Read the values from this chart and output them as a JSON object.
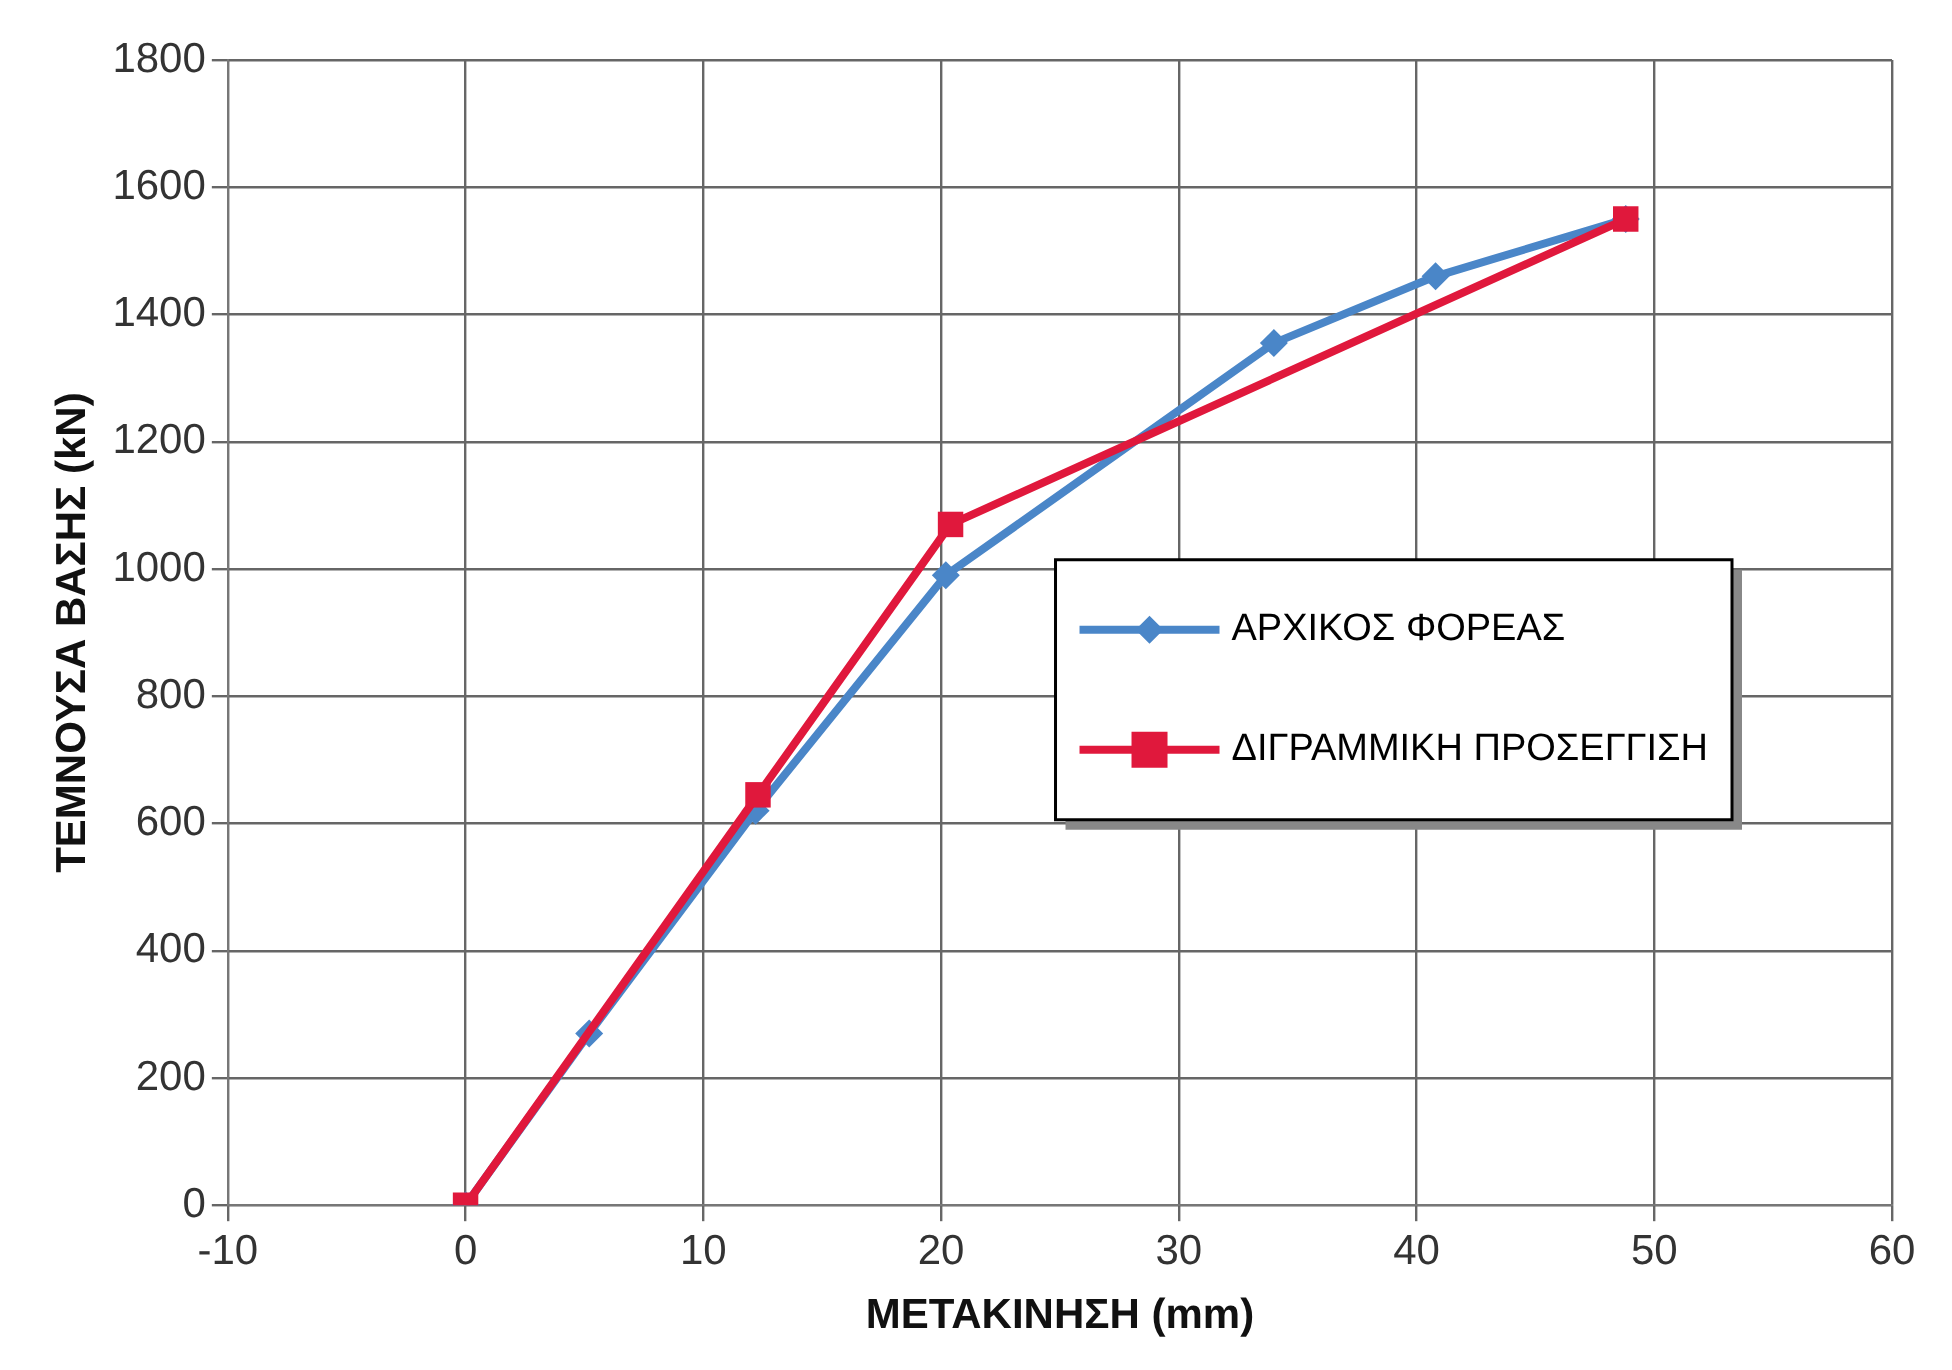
{
  "chart_data": {
    "type": "line",
    "xlabel": "ΜΕΤΑΚΙΝΗΣΗ (mm)",
    "ylabel": "ΤΕΜΝΟΥΣΑ ΒΑΣΗΣ (kN)",
    "xlim": [
      -10,
      60
    ],
    "xticks": [
      -10,
      0,
      10,
      20,
      30,
      40,
      50,
      60
    ],
    "ylim": [
      0,
      1800
    ],
    "yticks": [
      0,
      200,
      400,
      600,
      800,
      1000,
      1200,
      1400,
      1600,
      1800
    ],
    "grid": true,
    "legend": "right",
    "series": [
      {
        "name": "ΑΡΧΙΚΟΣ ΦΟΡΕΑΣ",
        "color": "#4a86c8",
        "marker": "diamond",
        "x": [
          0,
          5.2,
          12.2,
          20.2,
          34,
          40.8,
          48.8
        ],
        "values": [
          0,
          270,
          620,
          990,
          1355,
          1460,
          1550
        ]
      },
      {
        "name": "ΔΙΓΡΑΜΜΙΚΗ ΠΡΟΣΕΓΓΙΣΗ",
        "color": "#e0183c",
        "marker": "square",
        "x": [
          0,
          12.3,
          20.4,
          48.8
        ],
        "values": [
          0,
          645,
          1070,
          1550
        ]
      }
    ]
  }
}
